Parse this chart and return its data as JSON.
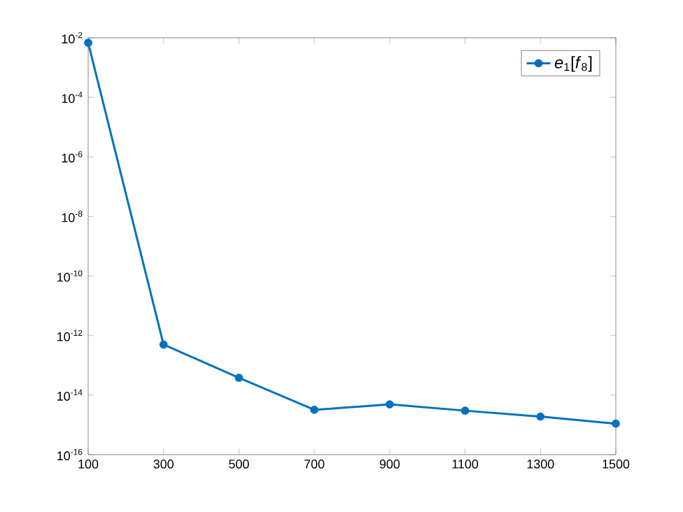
{
  "chart_data": {
    "type": "line",
    "x": [
      100,
      300,
      500,
      700,
      900,
      1100,
      1300,
      1500
    ],
    "series": [
      {
        "name": "*e*$_{1}$[*f*$_{8}$]",
        "color": "#0072bd",
        "values": [
          0.0068,
          5e-13,
          3.8e-14,
          3.2e-15,
          4.9e-15,
          3e-15,
          1.9e-15,
          1.1e-15
        ]
      }
    ],
    "log": "y",
    "xlim": [
      100,
      1500
    ],
    "ylim": [
      1e-16,
      0.01
    ],
    "xticks": [
      100,
      300,
      500,
      700,
      900,
      1100,
      1300,
      1500
    ],
    "yticks": [
      {
        "value": 1e-16,
        "label": "10$^{-16}$"
      },
      {
        "value": 1e-14,
        "label": "10$^{-14}$"
      },
      {
        "value": 1e-12,
        "label": "10$^{-12}$"
      },
      {
        "value": 1e-10,
        "label": "10$^{-10}$"
      },
      {
        "value": 1e-08,
        "label": "10$^{-8}$"
      },
      {
        "value": 1e-06,
        "label": "10$^{-6}$"
      },
      {
        "value": 0.0001,
        "label": "10$^{-4}$"
      },
      {
        "value": 0.01,
        "label": "10$^{-2}$"
      }
    ],
    "grid": false,
    "legend": "top right",
    "marker": "circle",
    "line_style": "solid"
  }
}
